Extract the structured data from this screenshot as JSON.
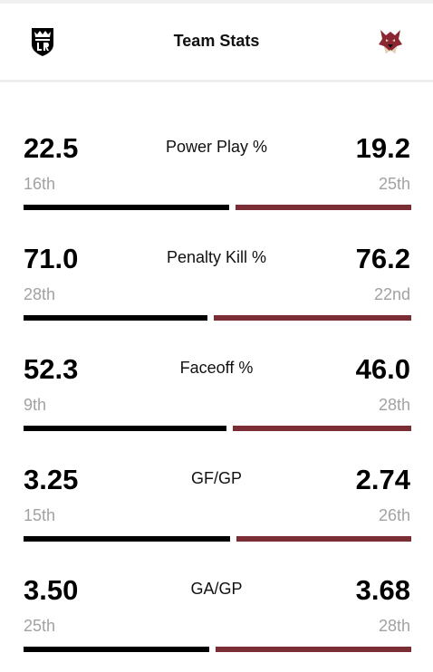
{
  "header": {
    "title": "Team Stats",
    "home_logo_icon": "la-kings-shield-icon",
    "away_logo_icon": "coyotes-head-icon"
  },
  "colors": {
    "home_bar": "#000000",
    "away_bar": "#7b2d35",
    "rank_text": "#a2a2a2"
  },
  "stats": [
    {
      "label": "Power Play %",
      "home_value": "22.5",
      "home_rank": "16th",
      "away_value": "19.2",
      "away_rank": "25th",
      "home_num": 22.5,
      "away_num": 19.2
    },
    {
      "label": "Penalty Kill %",
      "home_value": "71.0",
      "home_rank": "28th",
      "away_value": "76.2",
      "away_rank": "22nd",
      "home_num": 71.0,
      "away_num": 76.2
    },
    {
      "label": "Faceoff %",
      "home_value": "52.3",
      "home_rank": "9th",
      "away_value": "46.0",
      "away_rank": "28th",
      "home_num": 52.3,
      "away_num": 46.0
    },
    {
      "label": "GF/GP",
      "home_value": "3.25",
      "home_rank": "15th",
      "away_value": "2.74",
      "away_rank": "26th",
      "home_num": 3.25,
      "away_num": 2.74
    },
    {
      "label": "GA/GP",
      "home_value": "3.50",
      "home_rank": "25th",
      "away_value": "3.68",
      "away_rank": "28th",
      "home_num": 3.5,
      "away_num": 3.68
    }
  ]
}
